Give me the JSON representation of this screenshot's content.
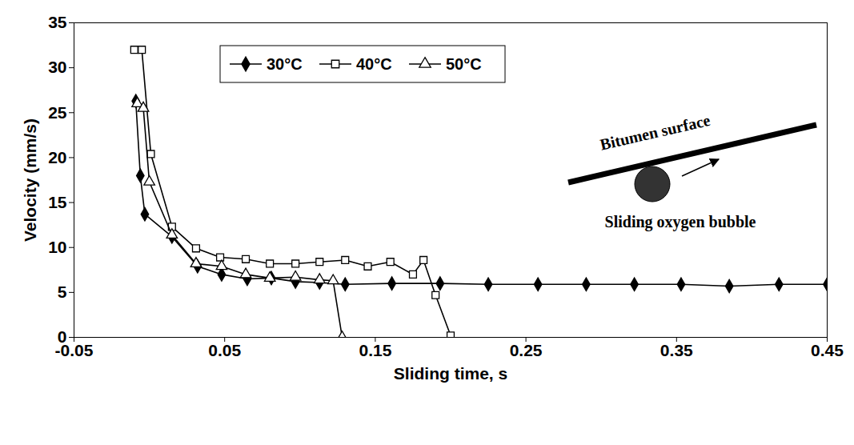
{
  "chart_data": {
    "type": "line",
    "x_label": "Sliding time, s",
    "y_label": "Velocity (mm/s)",
    "xlim": [
      -0.05,
      0.45
    ],
    "xticks": [
      -0.05,
      0.05,
      0.15,
      0.25,
      0.35,
      0.45
    ],
    "ylim": [
      0,
      35
    ],
    "yticks": [
      0,
      5,
      10,
      15,
      20,
      25,
      30,
      35
    ],
    "grid": false,
    "legend": "upper left",
    "annotations": [
      "Bitumen surface",
      "Sliding oxygen bubble"
    ],
    "series": [
      {
        "name": "30°C",
        "color": "#000000",
        "marker": "filled diamond",
        "x": [
          -0.009,
          -0.006,
          -0.003,
          0.015,
          0.032,
          0.048,
          0.065,
          0.081,
          0.097,
          0.113,
          0.13,
          0.161,
          0.193,
          0.225,
          0.258,
          0.29,
          0.322,
          0.353,
          0.385,
          0.418,
          0.45
        ],
        "values": [
          26.3,
          18.0,
          13.7,
          11.2,
          7.9,
          7.0,
          6.5,
          6.6,
          6.2,
          6.1,
          5.9,
          6.0,
          6.0,
          5.9,
          5.9,
          5.9,
          5.9,
          5.9,
          5.7,
          5.9,
          5.9
        ]
      },
      {
        "name": "40°C",
        "color": "#000000",
        "marker": "open square",
        "x": [
          -0.01,
          -0.005,
          0.001,
          0.015,
          0.031,
          0.047,
          0.064,
          0.08,
          0.097,
          0.113,
          0.13,
          0.145,
          0.16,
          0.175,
          0.182,
          0.19,
          0.2
        ],
        "values": [
          32.0,
          32.0,
          20.4,
          12.3,
          9.9,
          8.9,
          8.7,
          8.2,
          8.2,
          8.4,
          8.6,
          7.9,
          8.4,
          7.0,
          8.6,
          4.7,
          0.2
        ]
      },
      {
        "name": "50°C",
        "color": "#000000",
        "marker": "open triangle",
        "x": [
          -0.008,
          -0.004,
          0.0,
          0.015,
          0.031,
          0.048,
          0.064,
          0.08,
          0.097,
          0.113,
          0.122,
          0.128
        ],
        "values": [
          26.0,
          25.5,
          17.3,
          11.4,
          8.2,
          7.9,
          7.0,
          6.6,
          6.7,
          6.4,
          6.3,
          0.0
        ]
      }
    ]
  }
}
